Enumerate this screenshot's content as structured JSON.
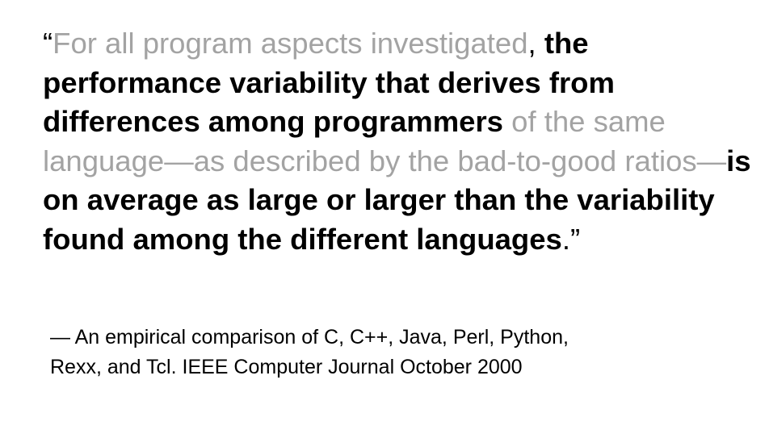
{
  "quote": {
    "open_mark": "“",
    "seg1": "For all program aspects investigated",
    "comma": ",",
    "seg2": "the performance variability that derives from differences among programmers",
    "seg3": "of the same language—as described by the bad-to-good ratios—",
    "seg4": "is on average as large or larger than the variability found among the different languages",
    "period": ".",
    "close_mark": "”"
  },
  "attribution": {
    "line1": "— An empirical comparison of C, C++, Java, Perl, Python,",
    "line2": "Rexx, and Tcl. IEEE Computer Journal October 2000"
  },
  "colors": {
    "emphasis": "#000000",
    "muted": "#a3a3a3",
    "background": "#ffffff"
  }
}
